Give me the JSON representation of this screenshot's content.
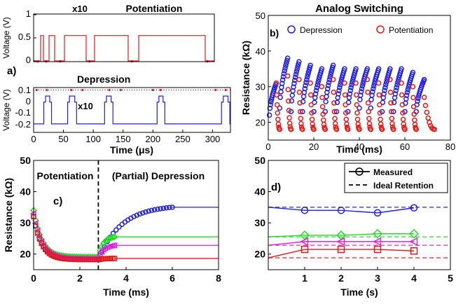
{
  "panel_a": {
    "panel_label": "a)",
    "top": {
      "title": "Potentiation",
      "annotation": "x10",
      "ylabel": "Voltage (V)",
      "yticks": [
        "0",
        "0.5",
        "1"
      ]
    },
    "bottom": {
      "title": "Depression",
      "annotation": "x10",
      "ylabel": "Voltage (V)",
      "yticks": [
        "0.1",
        "0",
        "-0.1",
        "-0.2"
      ],
      "xlabel": "Time (μs)",
      "xticks": [
        "0",
        "50",
        "100",
        "150",
        "200",
        "250",
        "300"
      ]
    }
  },
  "panel_b": {
    "panel_label": "b)",
    "title": "Analog Switching",
    "xlabel": "Time (ms)",
    "ylabel": "Resistance (kΩ)",
    "xticks": [
      "0",
      "20",
      "40",
      "60",
      "80"
    ],
    "yticks": [
      "20",
      "30",
      "40",
      "50"
    ],
    "legend": [
      "Depression",
      "Potentiation"
    ]
  },
  "panel_c": {
    "panel_label": "c)",
    "xlabel": "Time (ms)",
    "ylabel": "Resistance (kΩ)",
    "xticks": [
      "0",
      "2",
      "4",
      "6",
      "8"
    ],
    "yticks": [
      "20",
      "30",
      "40",
      "50"
    ],
    "region_left": "Potentiation",
    "region_right": "(Partial) Depression"
  },
  "panel_d": {
    "panel_label": "d)",
    "xlabel": "Time (s)",
    "ylabel": "",
    "xticks": [
      "1",
      "2",
      "3",
      "4",
      "5"
    ],
    "yticks": [
      "20",
      "30",
      "40",
      "50"
    ],
    "legend": [
      "Measured",
      "Ideal Retention"
    ]
  },
  "colors": {
    "blue": "#1f1fe6",
    "red": "#e31a1a",
    "green": "#22dd22",
    "magenta": "#e020e0",
    "black": "#000000"
  },
  "chart_data": [
    {
      "type": "line",
      "id": "a-top",
      "title": "Potentiation",
      "xlabel": "Time (μs)",
      "ylabel": "Voltage (V)",
      "xlim": [
        0,
        330
      ],
      "ylim": [
        0,
        1
      ],
      "grid": false,
      "series": [
        {
          "color": "#e31a1a",
          "pulses": [
            [
              10,
              14,
              0.55
            ],
            [
              22,
              30,
              0.55
            ],
            [
              44,
              75,
              0.55
            ],
            [
              87,
              135,
              0.55
            ],
            [
              150,
              245,
              0.55
            ]
          ],
          "markers_x": [
            6,
            18,
            38,
            80,
            140,
            248
          ]
        }
      ]
    },
    {
      "type": "line",
      "id": "a-bottom",
      "title": "Depression",
      "xlabel": "Time (μs)",
      "ylabel": "Voltage (V)",
      "xlim": [
        0,
        330
      ],
      "ylim": [
        -0.25,
        0.12
      ],
      "grid": false,
      "series": [
        {
          "color": "#1f1fe6",
          "baseline": -0.18,
          "dwell": 0.0,
          "pulses": [
            [
              20,
              27
            ],
            [
              60,
              69
            ],
            [
              122,
              130
            ],
            [
              210,
              217
            ],
            [
              318,
              326
            ]
          ],
          "markers_x": [
            5,
            22,
            63,
            82,
            127,
            146,
            200,
            213,
            305,
            322
          ]
        }
      ]
    },
    {
      "type": "scatter",
      "id": "b",
      "title": "Analog Switching",
      "xlabel": "Time (ms)",
      "ylabel": "Resistance (kΩ)",
      "xlim": [
        0,
        80
      ],
      "ylim": [
        15,
        50
      ],
      "legend_position": "top-right",
      "grid": false,
      "series": [
        {
          "name": "Depression",
          "color": "#1f1fe6",
          "cycles": [
            [
              0.5,
              3.5,
              22,
              31
            ],
            [
              5,
              8.5,
              24,
              38
            ],
            [
              10,
              13.5,
              23,
              37
            ],
            [
              15,
              18.5,
              23,
              36
            ],
            [
              20,
              23.5,
              23,
              35
            ],
            [
              25,
              28.5,
              23,
              36
            ],
            [
              30,
              33.5,
              23,
              35
            ],
            [
              35,
              38.5,
              23,
              35
            ],
            [
              40,
              43.5,
              24,
              35
            ],
            [
              45,
              48.5,
              24,
              35
            ],
            [
              50,
              53.5,
              23,
              35
            ],
            [
              55,
              58.5,
              23,
              35
            ],
            [
              60,
              63.5,
              23,
              34
            ],
            [
              65,
              68.5,
              23,
              32
            ]
          ]
        },
        {
          "name": "Potentiation",
          "color": "#e31a1a",
          "cycles": [
            [
              3.5,
              5,
              31,
              18
            ],
            [
              8.5,
              10,
              33,
              18
            ],
            [
              13.5,
              15,
              32,
              18
            ],
            [
              18.5,
              20,
              31,
              18
            ],
            [
              23.5,
              25,
              30,
              18
            ],
            [
              28.5,
              30,
              32,
              18
            ],
            [
              33.5,
              35,
              31,
              18
            ],
            [
              38.5,
              40,
              31,
              18
            ],
            [
              43.5,
              45,
              32,
              18
            ],
            [
              48.5,
              50,
              31,
              18
            ],
            [
              53.5,
              55,
              32,
              18
            ],
            [
              58.5,
              60,
              31,
              18
            ],
            [
              63.5,
              65,
              30,
              18
            ],
            [
              68.5,
              73,
              27,
              18
            ]
          ]
        }
      ]
    },
    {
      "type": "scatter",
      "id": "c",
      "xlabel": "Time (ms)",
      "ylabel": "Resistance (kΩ)",
      "xlim": [
        0,
        8
      ],
      "ylim": [
        15,
        50
      ],
      "grid": false,
      "divider_x": 2.8,
      "series": [
        {
          "color": "#1f1fe6",
          "marker": "circle",
          "start": 32,
          "min": 18.5,
          "end": 35,
          "hold_to": 8
        },
        {
          "color": "#22dd22",
          "marker": "diamond",
          "start": 34,
          "min": 19,
          "end": 25.5,
          "hold_to": 8
        },
        {
          "color": "#e020e0",
          "marker": "triangle",
          "start": 33,
          "min": 18.5,
          "end": 22.8,
          "hold_to": 8
        },
        {
          "color": "#e31a1a",
          "marker": "square",
          "start": 32,
          "min": 18.2,
          "end": 18.6,
          "hold_to": 8
        }
      ]
    },
    {
      "type": "line",
      "id": "d",
      "xlabel": "Time (s)",
      "ylabel": "",
      "xlim": [
        0,
        5
      ],
      "ylim": [
        15,
        50
      ],
      "legend_position": "top-right",
      "grid": false,
      "series": [
        {
          "color": "#1f1fe6",
          "marker": "circle",
          "x": [
            0,
            1,
            2,
            3,
            4
          ],
          "y": [
            35,
            34,
            34,
            33.2,
            34.8
          ],
          "ideal": 35
        },
        {
          "color": "#22dd22",
          "marker": "diamond",
          "x": [
            0,
            1,
            2,
            3,
            4
          ],
          "y": [
            25.5,
            26,
            26,
            26.5,
            26.5
          ],
          "ideal": 25.5
        },
        {
          "color": "#e020e0",
          "marker": "triangle",
          "x": [
            0,
            1,
            2,
            3,
            4
          ],
          "y": [
            22.8,
            24,
            24,
            24,
            24
          ],
          "ideal": 22.8
        },
        {
          "color": "#e31a1a",
          "marker": "square",
          "x": [
            0,
            1,
            2,
            3,
            4
          ],
          "y": [
            18.8,
            21.5,
            21.5,
            21.5,
            21
          ],
          "ideal": 18.8
        }
      ]
    }
  ]
}
